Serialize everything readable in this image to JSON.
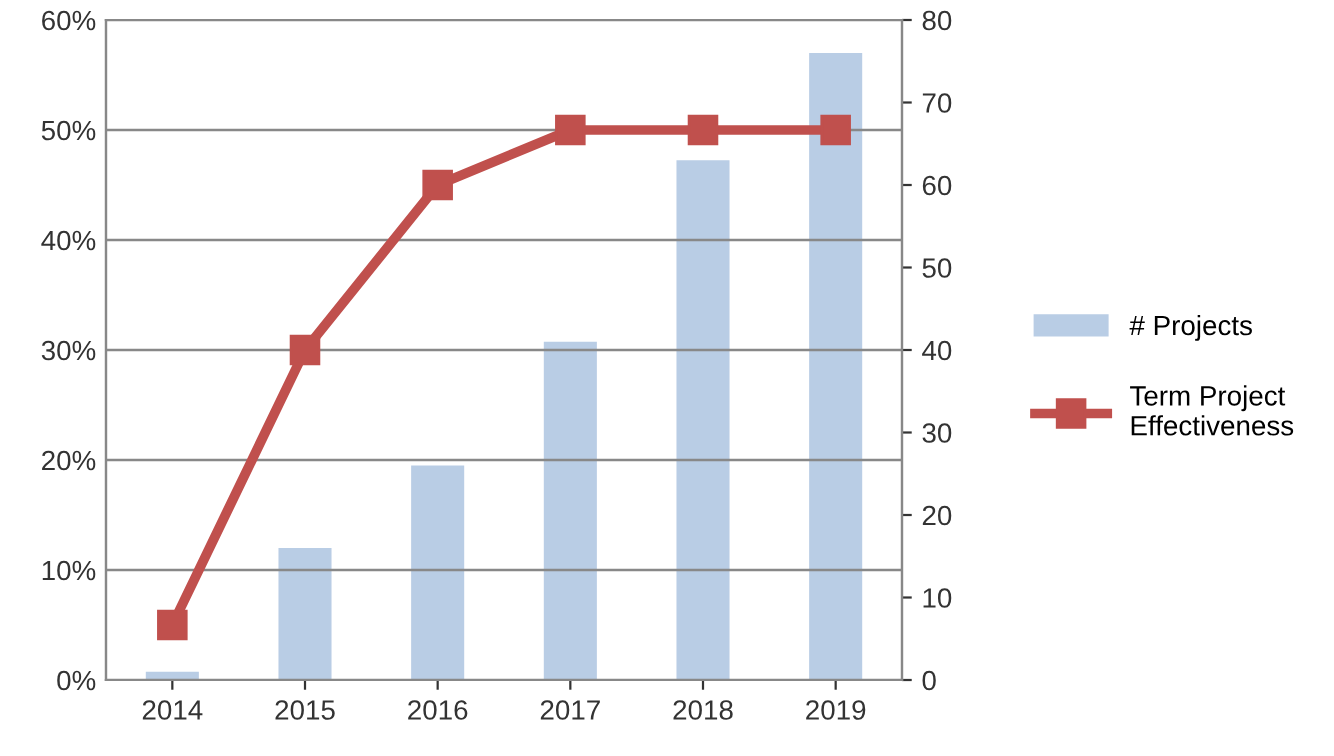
{
  "chart_data": {
    "type": "bar",
    "categories": [
      "2014",
      "2015",
      "2016",
      "2017",
      "2018",
      "2019"
    ],
    "series": [
      {
        "name": "# Projects",
        "axis": "y2",
        "color": "#b9cde5",
        "values": [
          1,
          16,
          26,
          41,
          63,
          76
        ]
      },
      {
        "name": "Term Project\nEffectiveness",
        "type": "line",
        "axis": "y",
        "color": "#c0504d",
        "marker": "square",
        "values": [
          5,
          30,
          45,
          50,
          50,
          50
        ]
      }
    ],
    "ylim": [
      0,
      60
    ],
    "yticks": [
      {
        "value": 0,
        "label": "0%"
      },
      {
        "value": 10,
        "label": "10%"
      },
      {
        "value": 20,
        "label": "20%"
      },
      {
        "value": 30,
        "label": "30%"
      },
      {
        "value": 40,
        "label": "40%"
      },
      {
        "value": 50,
        "label": "50%"
      },
      {
        "value": 60,
        "label": "60%"
      }
    ],
    "y2lim": [
      0,
      80
    ],
    "y2ticks": [
      0,
      10,
      20,
      30,
      40,
      50,
      60,
      70,
      80
    ],
    "grid": "y",
    "legend": "right"
  }
}
